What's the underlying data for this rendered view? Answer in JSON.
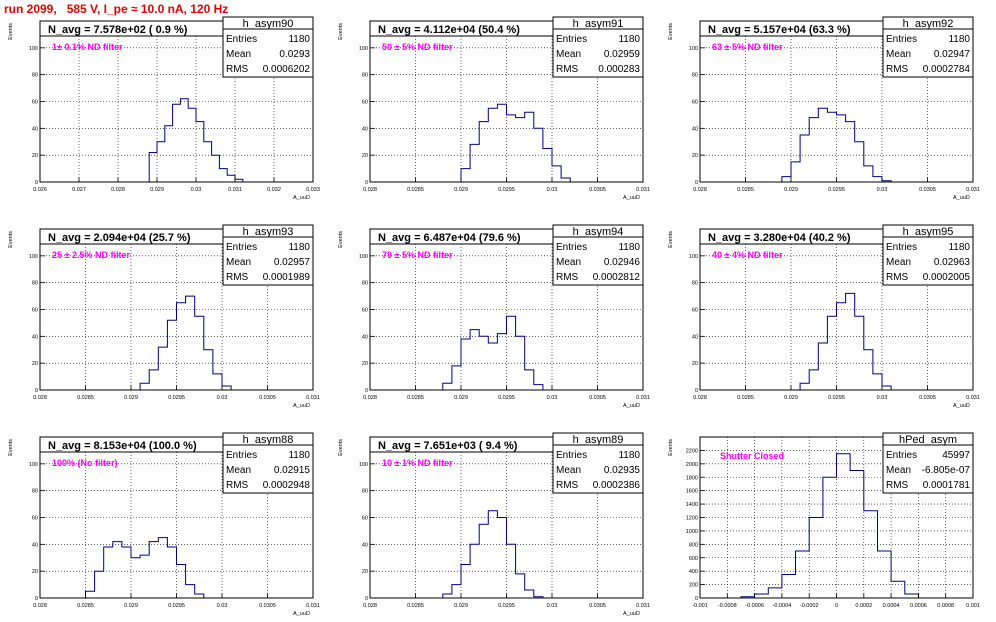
{
  "header": {
    "title": "run 2099,   585 V, I_pe ≈ 10.0 nA, 120 Hz"
  },
  "chart_data": [
    {
      "type": "bar",
      "hist_name": "h_asym90",
      "nline": "N_avg = 7.578e+02 ( 0.9 %)",
      "filter": "1± 0.1% ND filter",
      "entries": "1180",
      "mean": "0.0293",
      "rms": "0.0006202",
      "ylabel": "Events",
      "xlabel": "A_uuD",
      "xlim": [
        0.026,
        0.033
      ],
      "ylim": [
        0,
        120
      ],
      "xticks": [
        "0.026",
        "0.027",
        "0.028",
        "0.029",
        "0.03",
        "0.031",
        "0.032",
        "0.033"
      ],
      "yticks": [
        "0",
        "20",
        "40",
        "60",
        "80",
        "100"
      ],
      "x": [
        0.0289,
        0.0291,
        0.0293,
        0.0295,
        0.0297,
        0.0299,
        0.0301,
        0.0303,
        0.0305,
        0.0307,
        0.0309,
        0.0311
      ],
      "values": [
        22,
        30,
        42,
        58,
        62,
        55,
        45,
        30,
        20,
        10,
        5,
        2
      ]
    },
    {
      "type": "bar",
      "hist_name": "h_asym91",
      "nline": "N_avg = 4.112e+04 (50.4 %)",
      "filter": "50 ± 5% ND filter",
      "entries": "1180",
      "mean": "0.02959",
      "rms": "0.000283",
      "ylabel": "Events",
      "xlabel": "A_uuD",
      "xlim": [
        0.028,
        0.031
      ],
      "ylim": [
        0,
        120
      ],
      "xticks": [
        "0.028",
        "0.0285",
        "0.029",
        "0.0295",
        "0.03",
        "0.0305",
        "0.031"
      ],
      "yticks": [
        "0",
        "20",
        "40",
        "60",
        "80",
        "100"
      ],
      "x": [
        0.02905,
        0.02915,
        0.02925,
        0.02935,
        0.02945,
        0.02955,
        0.02965,
        0.02975,
        0.02985,
        0.02995,
        0.03005,
        0.03015
      ],
      "values": [
        10,
        28,
        45,
        55,
        58,
        50,
        48,
        52,
        40,
        25,
        12,
        3
      ]
    },
    {
      "type": "bar",
      "hist_name": "h_asym92",
      "nline": "N_avg = 5.157e+04 (63.3 %)",
      "filter": "63 ± 5% ND filter",
      "entries": "1180",
      "mean": "0.02947",
      "rms": "0.0002784",
      "ylabel": "Events",
      "xlabel": "A_uuD",
      "xlim": [
        0.028,
        0.031
      ],
      "ylim": [
        0,
        120
      ],
      "xticks": [
        "0.028",
        "0.0285",
        "0.029",
        "0.0295",
        "0.03",
        "0.0305",
        "0.031"
      ],
      "yticks": [
        "0",
        "20",
        "40",
        "60",
        "80",
        "100"
      ],
      "x": [
        0.02895,
        0.02905,
        0.02915,
        0.02925,
        0.02935,
        0.02945,
        0.02955,
        0.02965,
        0.02975,
        0.02985,
        0.02995,
        0.03005
      ],
      "values": [
        4,
        15,
        35,
        48,
        55,
        52,
        50,
        45,
        30,
        12,
        4,
        1
      ]
    },
    {
      "type": "bar",
      "hist_name": "h_asym93",
      "nline": "N_avg = 2.094e+04 (25.7 %)",
      "filter": "25 ± 2.5% ND filter",
      "entries": "1180",
      "mean": "0.02957",
      "rms": "0.0001989",
      "ylabel": "Events",
      "xlabel": "A_uuD",
      "xlim": [
        0.028,
        0.031
      ],
      "ylim": [
        0,
        120
      ],
      "xticks": [
        "0.028",
        "0.0285",
        "0.029",
        "0.0295",
        "0.03",
        "0.0305",
        "0.031"
      ],
      "yticks": [
        "0",
        "20",
        "40",
        "60",
        "80",
        "100"
      ],
      "x": [
        0.02915,
        0.02925,
        0.02935,
        0.02945,
        0.02955,
        0.02965,
        0.02975,
        0.02985,
        0.02995,
        0.03005
      ],
      "values": [
        5,
        15,
        32,
        52,
        65,
        70,
        55,
        30,
        12,
        3
      ]
    },
    {
      "type": "bar",
      "hist_name": "h_asym94",
      "nline": "N_avg = 6.487e+04 (79.6 %)",
      "filter": "79 ± 5% ND filter",
      "entries": "1180",
      "mean": "0.02946",
      "rms": "0.0002812",
      "ylabel": "Events",
      "xlabel": "A_uuD",
      "xlim": [
        0.028,
        0.031
      ],
      "ylim": [
        0,
        120
      ],
      "xticks": [
        "0.028",
        "0.0285",
        "0.029",
        "0.0295",
        "0.03",
        "0.0305",
        "0.031"
      ],
      "yticks": [
        "0",
        "20",
        "40",
        "60",
        "80",
        "100"
      ],
      "x": [
        0.02885,
        0.02895,
        0.02905,
        0.02915,
        0.02925,
        0.02935,
        0.02945,
        0.02955,
        0.02965,
        0.02975,
        0.02985
      ],
      "values": [
        5,
        18,
        38,
        45,
        40,
        35,
        42,
        55,
        40,
        15,
        4
      ]
    },
    {
      "type": "bar",
      "hist_name": "h_asym95",
      "nline": "N_avg = 3.280e+04 (40.2 %)",
      "filter": "40 ± 4% ND filter",
      "entries": "1180",
      "mean": "0.02963",
      "rms": "0.0002005",
      "ylabel": "Events",
      "xlabel": "A_uuD",
      "xlim": [
        0.028,
        0.031
      ],
      "ylim": [
        0,
        120
      ],
      "xticks": [
        "0.028",
        "0.0285",
        "0.029",
        "0.0295",
        "0.03",
        "0.0305",
        "0.031"
      ],
      "yticks": [
        "0",
        "20",
        "40",
        "60",
        "80",
        "100"
      ],
      "x": [
        0.02915,
        0.02925,
        0.02935,
        0.02945,
        0.02955,
        0.02965,
        0.02975,
        0.02985,
        0.02995,
        0.03005
      ],
      "values": [
        5,
        15,
        35,
        55,
        65,
        72,
        55,
        30,
        12,
        3
      ]
    },
    {
      "type": "bar",
      "hist_name": "h_asym88",
      "nline": "N_avg = 8.153e+04 (100.0 %)",
      "filter": "100% (No filter)",
      "entries": "1180",
      "mean": "0.02915",
      "rms": "0.0002948",
      "ylabel": "Events",
      "xlabel": "A_uuD",
      "xlim": [
        0.028,
        0.031
      ],
      "ylim": [
        0,
        120
      ],
      "xticks": [
        "0.028",
        "0.0285",
        "0.029",
        "0.0295",
        "0.03",
        "0.0305",
        "0.031"
      ],
      "yticks": [
        "0",
        "20",
        "40",
        "60",
        "80",
        "100"
      ],
      "x": [
        0.02855,
        0.02865,
        0.02875,
        0.02885,
        0.02895,
        0.02905,
        0.02915,
        0.02925,
        0.02935,
        0.02945,
        0.02955,
        0.02965,
        0.02975
      ],
      "values": [
        5,
        20,
        38,
        42,
        38,
        30,
        32,
        42,
        45,
        38,
        25,
        10,
        3
      ]
    },
    {
      "type": "bar",
      "hist_name": "h_asym89",
      "nline": "N_avg = 7.651e+03 ( 9.4 %)",
      "filter": "10 ± 1% ND filter",
      "entries": "1180",
      "mean": "0.02935",
      "rms": "0.0002386",
      "ylabel": "Events",
      "xlabel": "A_uuD",
      "xlim": [
        0.028,
        0.031
      ],
      "ylim": [
        0,
        120
      ],
      "xticks": [
        "0.028",
        "0.0285",
        "0.029",
        "0.0295",
        "0.03",
        "0.0305",
        "0.031"
      ],
      "yticks": [
        "0",
        "20",
        "40",
        "60",
        "80",
        "100"
      ],
      "x": [
        0.02885,
        0.02895,
        0.02905,
        0.02915,
        0.02925,
        0.02935,
        0.02945,
        0.02955,
        0.02965,
        0.02975,
        0.02985
      ],
      "values": [
        3,
        10,
        25,
        40,
        55,
        65,
        60,
        40,
        18,
        6,
        1
      ]
    },
    {
      "type": "bar",
      "hist_name": "hPed_asym",
      "nline": "",
      "filter": "Shutter Closed",
      "entries": "45997",
      "mean": "-6.805e-07",
      "rms": "0.0001781",
      "ylabel": "Events",
      "xlabel": "",
      "xlim": [
        -0.001,
        0.001
      ],
      "ylim": [
        0,
        2400
      ],
      "xticks": [
        "-0.001",
        "-0.0008",
        "-0.0006",
        "-0.0004",
        "-0.0002",
        "0",
        "0.0002",
        "0.0004",
        "0.0006",
        "0.0008",
        "0.001"
      ],
      "yticks": [
        "0",
        "200",
        "400",
        "600",
        "800",
        "1000",
        "1200",
        "1400",
        "1600",
        "1800",
        "2000",
        "2200"
      ],
      "x": [
        -0.00065,
        -0.00055,
        -0.00045,
        -0.00035,
        -0.00025,
        -0.00015,
        -5e-05,
        5e-05,
        0.00015,
        0.00025,
        0.00035,
        0.00045,
        0.00055
      ],
      "values": [
        20,
        60,
        150,
        350,
        700,
        1200,
        1800,
        2150,
        1900,
        1300,
        700,
        250,
        60
      ]
    }
  ]
}
